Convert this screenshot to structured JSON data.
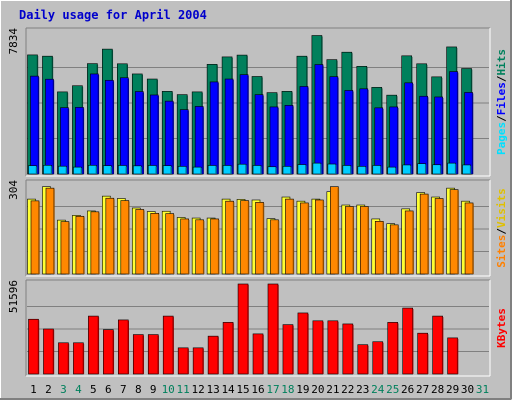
{
  "chart_data": [
    {
      "type": "bar",
      "title": "Daily usage for April 2004",
      "panel": "hits-files-pages",
      "categories": [
        "1",
        "2",
        "3",
        "4",
        "5",
        "6",
        "7",
        "8",
        "9",
        "10",
        "11",
        "12",
        "13",
        "14",
        "15",
        "16",
        "17",
        "18",
        "19",
        "20",
        "21",
        "22",
        "23",
        "24",
        "25",
        "26",
        "27",
        "28",
        "29",
        "30",
        "31"
      ],
      "category_colors": [
        "#000000",
        "#000000",
        "#00805c",
        "#00805c",
        "#000000",
        "#000000",
        "#000000",
        "#000000",
        "#000000",
        "#00805c",
        "#00805c",
        "#000000",
        "#000000",
        "#000000",
        "#000000",
        "#000000",
        "#00805c",
        "#00805c",
        "#000000",
        "#000000",
        "#000000",
        "#000000",
        "#000000",
        "#00805c",
        "#00805c",
        "#000000",
        "#000000",
        "#000000",
        "#000000",
        "#000000",
        "#00805c"
      ],
      "ylabel_parts": [
        "Pages",
        "/",
        "Files",
        "/",
        "Hits"
      ],
      "ylabel_colors": [
        "#00e0ff",
        "#000000",
        "#0000ff",
        "#000000",
        "#00805c"
      ],
      "y_max_label": "7834",
      "ylim": [
        0,
        7834
      ],
      "series": [
        {
          "name": "Hits",
          "color": "#00805c",
          "values": [
            6570,
            6500,
            4530,
            4870,
            6090,
            6890,
            6080,
            5520,
            5240,
            4560,
            4380,
            4530,
            6050,
            6460,
            6560,
            5380,
            4490,
            4560,
            6500,
            7640,
            6310,
            6720,
            5940,
            4780,
            4350,
            6520,
            6080,
            5360,
            7010,
            5820,
            null
          ]
        },
        {
          "name": "Files",
          "color": "#0000ff",
          "values": [
            5400,
            5230,
            3660,
            3680,
            5520,
            5170,
            5310,
            4550,
            4360,
            4020,
            3550,
            3730,
            5080,
            5240,
            5480,
            4380,
            3700,
            3790,
            4830,
            6040,
            5370,
            4610,
            4700,
            3650,
            3700,
            5030,
            4290,
            4250,
            5650,
            4500,
            null
          ]
        },
        {
          "name": "Pages",
          "color": "#00ccff",
          "values": [
            460,
            480,
            430,
            380,
            480,
            460,
            470,
            450,
            470,
            460,
            420,
            380,
            470,
            470,
            540,
            470,
            400,
            420,
            520,
            600,
            550,
            470,
            420,
            470,
            380,
            500,
            570,
            510,
            600,
            500,
            null
          ]
        }
      ]
    },
    {
      "type": "bar",
      "panel": "visits-sites",
      "categories": [
        "1",
        "2",
        "3",
        "4",
        "5",
        "6",
        "7",
        "8",
        "9",
        "10",
        "11",
        "12",
        "13",
        "14",
        "15",
        "16",
        "17",
        "18",
        "19",
        "20",
        "21",
        "22",
        "23",
        "24",
        "25",
        "26",
        "27",
        "28",
        "29",
        "30",
        "31"
      ],
      "ylabel_parts": [
        "Sites",
        "/",
        "Visits"
      ],
      "ylabel_colors": [
        "#ff8000",
        "#000000",
        "#e0c000"
      ],
      "y_max_label": "304",
      "ylim": [
        0,
        304
      ],
      "series": [
        {
          "name": "Visits",
          "color": "#ffff33",
          "values": [
            253,
            295,
            182,
            198,
            213,
            263,
            255,
            223,
            211,
            212,
            191,
            189,
            189,
            253,
            252,
            250,
            187,
            260,
            246,
            253,
            278,
            233,
            233,
            186,
            170,
            220,
            275,
            260,
            290,
            246,
            null
          ]
        },
        {
          "name": "Sites",
          "color": "#ff8800",
          "values": [
            247,
            290,
            177,
            195,
            210,
            256,
            248,
            218,
            205,
            204,
            186,
            183,
            186,
            246,
            248,
            242,
            183,
            253,
            240,
            250,
            295,
            228,
            228,
            178,
            166,
            213,
            270,
            255,
            285,
            240,
            null
          ]
        }
      ]
    },
    {
      "type": "bar",
      "panel": "kbytes",
      "categories": [
        "1",
        "2",
        "3",
        "4",
        "5",
        "6",
        "7",
        "8",
        "9",
        "10",
        "11",
        "12",
        "13",
        "14",
        "15",
        "16",
        "17",
        "18",
        "19",
        "20",
        "21",
        "22",
        "23",
        "24",
        "25",
        "26",
        "27",
        "28",
        "29",
        "30",
        "31"
      ],
      "ylabel_parts": [
        "KBytes"
      ],
      "ylabel_colors": [
        "#ff0000"
      ],
      "y_max_label": "51596",
      "ylim": [
        0,
        51596
      ],
      "series": [
        {
          "name": "KBytes",
          "color": "#ff0000",
          "values": [
            31400,
            25800,
            17900,
            17900,
            33200,
            25400,
            31000,
            22600,
            22600,
            33200,
            15000,
            15000,
            21700,
            29600,
            51600,
            23000,
            51600,
            28300,
            35000,
            30500,
            30500,
            28700,
            16800,
            18500,
            29600,
            37800,
            23400,
            33200,
            20700,
            null,
            null
          ]
        }
      ]
    }
  ]
}
